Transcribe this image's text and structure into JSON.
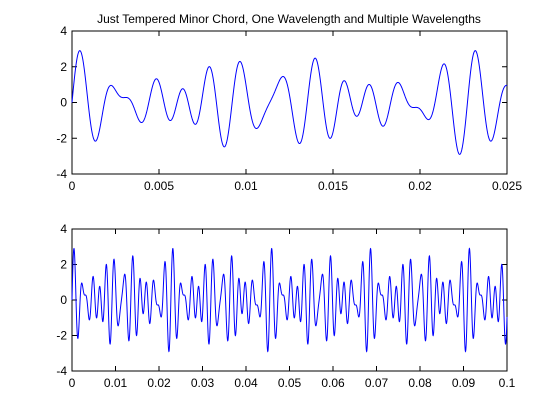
{
  "figure": {
    "background": "#ffffff",
    "line_color": "#0000ff",
    "axis_color": "#000000"
  },
  "chart_data": [
    {
      "type": "line",
      "title": "Just Tempered Minor Chord, One Wavelength and Multiple Wavelengths",
      "xlabel": "",
      "ylabel": "",
      "xlim": [
        0,
        0.025
      ],
      "ylim": [
        -4,
        4
      ],
      "xticks": [
        0,
        0.005,
        0.01,
        0.015,
        0.02,
        0.025
      ],
      "xtick_labels": [
        "0",
        "0.005",
        "0.01",
        "0.015",
        "0.02",
        "0.025"
      ],
      "yticks": [
        -4,
        -2,
        0,
        2,
        4
      ],
      "ytick_labels": [
        "-4",
        "-2",
        "0",
        "2",
        "4"
      ],
      "grid": false,
      "series": [
        {
          "color": "#0000ff",
          "signal": {
            "function": "sum_of_sines",
            "frequencies_hz": [
              440,
              528,
              660
            ],
            "amplitudes": [
              1,
              1,
              1
            ]
          }
        }
      ]
    },
    {
      "type": "line",
      "title": "",
      "xlabel": "",
      "ylabel": "",
      "xlim": [
        0,
        0.1
      ],
      "ylim": [
        -4,
        4
      ],
      "xticks": [
        0,
        0.01,
        0.02,
        0.03,
        0.04,
        0.05,
        0.06,
        0.07,
        0.08,
        0.09,
        0.1
      ],
      "xtick_labels": [
        "0",
        "0.01",
        "0.02",
        "0.03",
        "0.04",
        "0.05",
        "0.06",
        "0.07",
        "0.08",
        "0.09",
        "0.1"
      ],
      "yticks": [
        -4,
        -2,
        0,
        2,
        4
      ],
      "ytick_labels": [
        "-4",
        "-2",
        "0",
        "2",
        "4"
      ],
      "grid": false,
      "series": [
        {
          "color": "#0000ff",
          "signal": {
            "function": "sum_of_sines",
            "frequencies_hz": [
              440,
              528,
              660
            ],
            "amplitudes": [
              1,
              1,
              1
            ]
          }
        }
      ]
    }
  ]
}
